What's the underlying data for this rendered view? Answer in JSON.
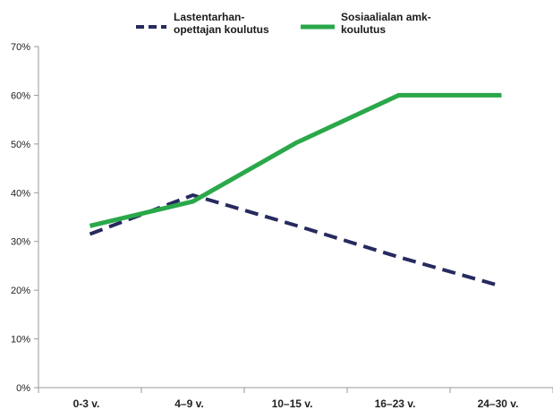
{
  "chart_data": {
    "type": "line",
    "categories": [
      "0-3 v.",
      "4–9 v.",
      "10–15 v.",
      "16–23 v.",
      "24–30 v."
    ],
    "y_ticks": [
      "0%",
      "10%",
      "20%",
      "30%",
      "40%",
      "50%",
      "60%",
      "70%"
    ],
    "ylim": [
      0,
      70
    ],
    "grid": false,
    "legend_position": "top",
    "series": [
      {
        "name_lines": [
          "Lastentarhan-",
          "opettajan koulutus"
        ],
        "values": [
          31.5,
          39.5,
          33.3,
          26.8,
          20.8
        ],
        "color": "#262a5e",
        "dashed": true
      },
      {
        "name_lines": [
          "Sosiaalialan amk-",
          "koulutus"
        ],
        "values": [
          33.2,
          38.2,
          50.2,
          60.0,
          60.0
        ],
        "color": "#2aa84a",
        "dashed": false
      }
    ]
  }
}
